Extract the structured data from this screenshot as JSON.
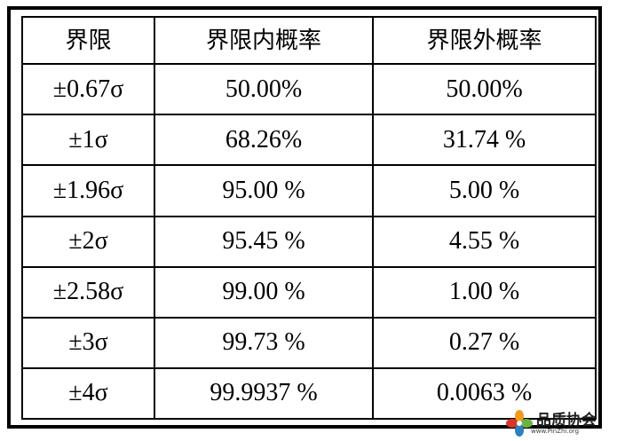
{
  "table": {
    "headers": [
      "界限",
      "界限内概率",
      "界限外概率"
    ],
    "rows": [
      [
        "±0.67σ",
        "50.00%",
        "50.00%"
      ],
      [
        "±1σ",
        "68.26%",
        "31.74 %"
      ],
      [
        "±1.96σ",
        "95.00 %",
        "5.00 %"
      ],
      [
        "±2σ",
        "95.45 %",
        "4.55 %"
      ],
      [
        "±2.58σ",
        "99.00 %",
        "1.00 %"
      ],
      [
        "±3σ",
        "99.73 %",
        "0.27 %"
      ],
      [
        "±4σ",
        "99.9937 %",
        "0.0063 %"
      ]
    ]
  },
  "watermark": {
    "title": "品质协会",
    "url": "www.PinZhi.org",
    "colors": {
      "petal_orange": "#f39a1e",
      "petal_red": "#d9342b",
      "petal_green": "#6db33f",
      "petal_blue": "#2f7fc1"
    }
  }
}
